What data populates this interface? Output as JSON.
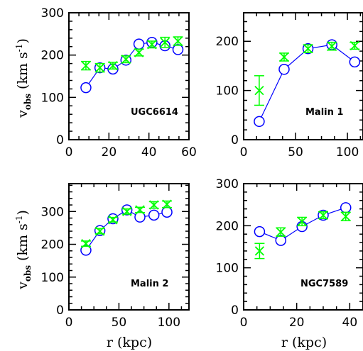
{
  "styles": {
    "model_color": "#0000ff",
    "obs_color": "#00ff00",
    "axis_color": "#000000"
  },
  "chart_data": [
    {
      "type": "scatter",
      "panel": "UGC6614",
      "xlabel": "",
      "ylabel": "v_obs (km s^-1)",
      "xlim": [
        0,
        60
      ],
      "ylim": [
        0,
        300
      ],
      "xticks": [
        0,
        20,
        40,
        60
      ],
      "yticks": [
        0,
        100,
        200,
        300
      ],
      "show_y_labels": true,
      "show_x_labels": true,
      "series": [
        {
          "role": "model",
          "marker": "circle-line",
          "x": [
            8.5,
            15.5,
            22,
            28.5,
            35,
            41.5,
            48,
            54.5
          ],
          "y": [
            123,
            170,
            167,
            188,
            226,
            230,
            222,
            213
          ]
        },
        {
          "role": "observed",
          "marker": "x-errorbar",
          "x": [
            8.5,
            15.5,
            22,
            28.5,
            35,
            41.5,
            48,
            54.5
          ],
          "y": [
            175,
            170,
            175,
            190,
            206,
            225,
            230,
            233
          ],
          "err": [
            10,
            10,
            8,
            8,
            8,
            8,
            12,
            10
          ]
        }
      ]
    },
    {
      "type": "scatter",
      "panel": "Malin 1",
      "xlabel": "",
      "ylabel": "",
      "xlim": [
        0,
        115
      ],
      "ylim": [
        0,
        258
      ],
      "xticks": [
        0,
        50,
        100
      ],
      "yticks": [
        0,
        100,
        200
      ],
      "show_y_labels": true,
      "show_x_labels": true,
      "series": [
        {
          "role": "model",
          "marker": "circle-line",
          "x": [
            15,
            39,
            62,
            85,
            107
          ],
          "y": [
            37,
            143,
            185,
            193,
            158
          ]
        },
        {
          "role": "observed",
          "marker": "x-errorbar",
          "x": [
            15,
            39,
            62,
            85,
            107
          ],
          "y": [
            100,
            168,
            185,
            190,
            191
          ],
          "err": [
            30,
            8,
            8,
            8,
            7
          ]
        }
      ]
    },
    {
      "type": "scatter",
      "panel": "Malin 2",
      "xlabel": "r (kpc)",
      "ylabel": "v_obs (km s^-1)",
      "xlim": [
        0,
        120
      ],
      "ylim": [
        0,
        385
      ],
      "xticks": [
        0,
        50,
        100
      ],
      "yticks": [
        0,
        100,
        200,
        300
      ],
      "show_y_labels": true,
      "show_x_labels": true,
      "series": [
        {
          "role": "model",
          "marker": "circle-line",
          "x": [
            17,
            31,
            44,
            58,
            71,
            85,
            98
          ],
          "y": [
            182,
            242,
            278,
            305,
            283,
            289,
            298
          ]
        },
        {
          "role": "observed",
          "marker": "x-errorbar",
          "x": [
            17,
            31,
            44,
            58,
            71,
            85,
            98
          ],
          "y": [
            202,
            240,
            275,
            300,
            305,
            320,
            322
          ],
          "err": [
            8,
            8,
            7,
            8,
            8,
            10,
            10
          ]
        }
      ]
    },
    {
      "type": "scatter",
      "panel": "NGC7589",
      "xlabel": "r (kpc)",
      "ylabel": "",
      "xlim": [
        0,
        45
      ],
      "ylim": [
        0,
        300
      ],
      "xticks": [
        0,
        20,
        40
      ],
      "yticks": [
        0,
        100,
        200,
        300
      ],
      "show_y_labels": true,
      "show_x_labels": true,
      "series": [
        {
          "role": "model",
          "marker": "circle-line",
          "x": [
            6,
            14,
            22,
            30,
            38.5
          ],
          "y": [
            186,
            165,
            198,
            225,
            243
          ]
        },
        {
          "role": "observed",
          "marker": "x-errorbar",
          "x": [
            6,
            14,
            22,
            30,
            38.5
          ],
          "y": [
            140,
            185,
            210,
            225,
            222
          ],
          "err": [
            18,
            10,
            10,
            8,
            10
          ]
        }
      ]
    }
  ]
}
